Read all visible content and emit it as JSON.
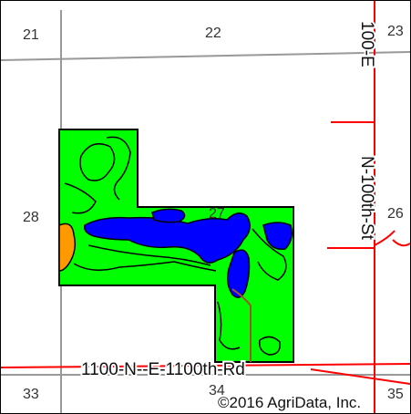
{
  "sections": {
    "s21": "21",
    "s22": "22",
    "s23": "23",
    "s28": "28",
    "s27": "27",
    "s26": "26",
    "s33": "33",
    "s34": "34",
    "s35": "35"
  },
  "roads": {
    "vertical_label_top": "100-E",
    "vertical_label_bottom": "N-100th-St",
    "horizontal_label": "1100-N--E-1100th-Rd"
  },
  "copyright": "©2016 AgriData, Inc.",
  "colors": {
    "field_green": "#00ff00",
    "soil_blue": "#0000ff",
    "soil_orange": "#ff9900",
    "road_red": "#ff0000",
    "section_line_gray": "#999999",
    "stream_brown": "#a0522d"
  }
}
